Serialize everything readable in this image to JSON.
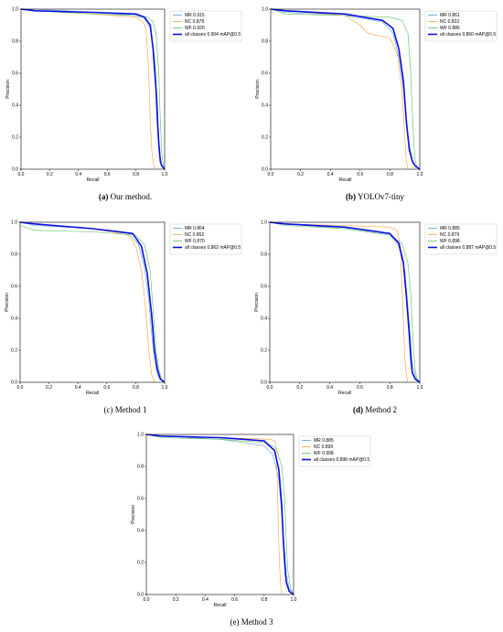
{
  "colors": {
    "MR": "#5a9fd4",
    "NC": "#ff9f3a",
    "WF": "#58bf58",
    "all": "#0a0ee0",
    "axis": "#000000"
  },
  "captions": [
    {
      "letter": "(a)",
      "text": "Our method."
    },
    {
      "letter": "(b)",
      "text": "YOLOv7-tiny"
    },
    {
      "letter": "(c)",
      "text": "Method 1"
    },
    {
      "letter": "(d)",
      "text": "Method 2"
    },
    {
      "letter": "(e)",
      "text": "Method 3"
    }
  ],
  "chart_data": [
    {
      "type": "line",
      "xlabel": "Recall",
      "ylabel": "Precision",
      "xlim": [
        0,
        1
      ],
      "ylim": [
        0,
        1
      ],
      "xticks": [
        "0.0",
        "0.2",
        "0.4",
        "0.6",
        "0.8",
        "1.0"
      ],
      "yticks": [
        "0.0",
        "0.2",
        "0.4",
        "0.6",
        "0.8",
        "1.0"
      ],
      "legend_position": "top-right",
      "grid": false,
      "series": [
        {
          "name": "MR 0.915",
          "key": "MR",
          "x": [
            0,
            0.1,
            0.5,
            0.8,
            0.86,
            0.9,
            0.93,
            0.95,
            0.96,
            0.97,
            0.98,
            1.0
          ],
          "y": [
            1.0,
            1.0,
            0.98,
            0.96,
            0.94,
            0.88,
            0.7,
            0.4,
            0.2,
            0.08,
            0.03,
            0.0
          ]
        },
        {
          "name": "NC 0.878",
          "key": "NC",
          "x": [
            0,
            0.1,
            0.5,
            0.8,
            0.85,
            0.87,
            0.89,
            0.9,
            0.91,
            0.92,
            0.93
          ],
          "y": [
            1.0,
            0.99,
            0.97,
            0.95,
            0.92,
            0.88,
            0.6,
            0.3,
            0.12,
            0.05,
            0.0
          ]
        },
        {
          "name": "WF 0.920",
          "key": "WF",
          "x": [
            0,
            0.1,
            0.5,
            0.8,
            0.88,
            0.92,
            0.94,
            0.96,
            0.97,
            0.98,
            0.99,
            1.0
          ],
          "y": [
            1.0,
            0.99,
            0.97,
            0.96,
            0.95,
            0.92,
            0.85,
            0.6,
            0.3,
            0.1,
            0.03,
            0.0
          ]
        },
        {
          "name": "all classes 0.904 mAP@0.5",
          "key": "all",
          "x": [
            0,
            0.1,
            0.5,
            0.8,
            0.86,
            0.9,
            0.92,
            0.94,
            0.95,
            0.96,
            0.97,
            0.98,
            1.0
          ],
          "y": [
            1.0,
            0.99,
            0.98,
            0.97,
            0.95,
            0.9,
            0.75,
            0.5,
            0.3,
            0.15,
            0.05,
            0.02,
            0.0
          ]
        }
      ]
    },
    {
      "type": "line",
      "xlabel": "Recall",
      "ylabel": "Precision",
      "xlim": [
        0,
        1
      ],
      "ylim": [
        0,
        1
      ],
      "xticks": [
        "0.0",
        "0.2",
        "0.4",
        "0.6",
        "0.8",
        "1.0"
      ],
      "yticks": [
        "0.0",
        "0.2",
        "0.4",
        "0.6",
        "0.8",
        "1.0"
      ],
      "legend_position": "top-right",
      "grid": false,
      "series": [
        {
          "name": "MR 0.861",
          "key": "MR",
          "x": [
            0,
            0.1,
            0.5,
            0.75,
            0.82,
            0.86,
            0.89,
            0.91,
            0.93,
            0.95,
            0.97,
            1.0
          ],
          "y": [
            1.0,
            0.98,
            0.96,
            0.92,
            0.85,
            0.7,
            0.5,
            0.3,
            0.15,
            0.06,
            0.02,
            0.0
          ]
        },
        {
          "name": "NC 0.832",
          "key": "NC",
          "x": [
            0,
            0.1,
            0.5,
            0.6,
            0.65,
            0.8,
            0.85,
            0.88,
            0.9,
            0.91,
            0.92
          ],
          "y": [
            1.0,
            0.99,
            0.96,
            0.9,
            0.85,
            0.82,
            0.72,
            0.5,
            0.2,
            0.05,
            0.0
          ]
        },
        {
          "name": "WF 0.886",
          "key": "WF",
          "x": [
            0,
            0.1,
            0.5,
            0.8,
            0.88,
            0.92,
            0.94,
            0.95,
            0.96,
            0.97,
            0.98,
            1.0
          ],
          "y": [
            1.0,
            0.97,
            0.96,
            0.95,
            0.93,
            0.85,
            0.6,
            0.35,
            0.15,
            0.05,
            0.02,
            0.0
          ]
        },
        {
          "name": "all classes 0.860 mAP@0.5",
          "key": "all",
          "x": [
            0,
            0.1,
            0.5,
            0.75,
            0.82,
            0.86,
            0.89,
            0.91,
            0.93,
            0.95,
            0.97,
            1.0
          ],
          "y": [
            1.0,
            0.99,
            0.97,
            0.93,
            0.88,
            0.75,
            0.55,
            0.3,
            0.12,
            0.05,
            0.02,
            0.0
          ]
        }
      ]
    },
    {
      "type": "line",
      "xlabel": "Recall",
      "ylabel": "Precision",
      "xlim": [
        0,
        1
      ],
      "ylim": [
        0,
        1
      ],
      "xticks": [
        "0.0",
        "0.2",
        "0.4",
        "0.6",
        "0.8",
        "1.0"
      ],
      "yticks": [
        "0.0",
        "0.2",
        "0.4",
        "0.6",
        "0.8",
        "1.0"
      ],
      "legend_position": "top-right",
      "grid": false,
      "series": [
        {
          "name": "MR 0.864",
          "key": "MR",
          "x": [
            0,
            0.1,
            0.5,
            0.75,
            0.82,
            0.86,
            0.89,
            0.91,
            0.93,
            0.95,
            0.97,
            1.0
          ],
          "y": [
            1.0,
            0.98,
            0.96,
            0.93,
            0.86,
            0.72,
            0.52,
            0.3,
            0.14,
            0.05,
            0.02,
            0.0
          ]
        },
        {
          "name": "NC 0.852",
          "key": "NC",
          "x": [
            0,
            0.1,
            0.5,
            0.75,
            0.8,
            0.84,
            0.87,
            0.89,
            0.91,
            0.93
          ],
          "y": [
            1.0,
            0.99,
            0.96,
            0.92,
            0.85,
            0.7,
            0.45,
            0.2,
            0.05,
            0.0
          ]
        },
        {
          "name": "WF 0.870",
          "key": "WF",
          "x": [
            0,
            0.1,
            0.5,
            0.8,
            0.86,
            0.9,
            0.92,
            0.94,
            0.96,
            0.98,
            1.0
          ],
          "y": [
            0.98,
            0.95,
            0.94,
            0.92,
            0.86,
            0.7,
            0.45,
            0.2,
            0.08,
            0.02,
            0.0
          ]
        },
        {
          "name": "all classes 0.862 mAP@0.5",
          "key": "all",
          "x": [
            0,
            0.1,
            0.5,
            0.78,
            0.84,
            0.88,
            0.91,
            0.93,
            0.95,
            0.97,
            1.0
          ],
          "y": [
            1.0,
            0.99,
            0.96,
            0.93,
            0.85,
            0.68,
            0.42,
            0.2,
            0.08,
            0.02,
            0.0
          ]
        }
      ]
    },
    {
      "type": "line",
      "xlabel": "Recall",
      "ylabel": "Precision",
      "xlim": [
        0,
        1
      ],
      "ylim": [
        0,
        1
      ],
      "xticks": [
        "0.0",
        "0.2",
        "0.4",
        "0.6",
        "0.8",
        "1.0"
      ],
      "yticks": [
        "0.0",
        "0.2",
        "0.4",
        "0.6",
        "0.8",
        "1.0"
      ],
      "legend_position": "top-right",
      "grid": false,
      "series": [
        {
          "name": "MR 0.885",
          "key": "MR",
          "x": [
            0,
            0.1,
            0.5,
            0.8,
            0.86,
            0.9,
            0.92,
            0.94,
            0.95,
            0.97,
            1.0
          ],
          "y": [
            1.0,
            0.99,
            0.96,
            0.92,
            0.85,
            0.7,
            0.48,
            0.25,
            0.12,
            0.04,
            0.0
          ]
        },
        {
          "name": "NC 0.879",
          "key": "NC",
          "x": [
            0,
            0.1,
            0.5,
            0.8,
            0.85,
            0.87,
            0.89,
            0.9,
            0.91,
            0.92
          ],
          "y": [
            1.0,
            0.99,
            0.98,
            0.97,
            0.95,
            0.85,
            0.4,
            0.15,
            0.05,
            0.0
          ]
        },
        {
          "name": "WF 0.898",
          "key": "WF",
          "x": [
            0,
            0.1,
            0.5,
            0.8,
            0.88,
            0.92,
            0.94,
            0.95,
            0.96,
            0.97,
            0.98,
            1.0
          ],
          "y": [
            1.0,
            0.98,
            0.96,
            0.92,
            0.87,
            0.75,
            0.55,
            0.35,
            0.18,
            0.08,
            0.02,
            0.0
          ]
        },
        {
          "name": "all classes 0.887 mAP@0.5",
          "key": "all",
          "x": [
            0,
            0.1,
            0.5,
            0.8,
            0.86,
            0.89,
            0.91,
            0.93,
            0.94,
            0.95,
            0.97,
            1.0
          ],
          "y": [
            1.0,
            0.99,
            0.97,
            0.93,
            0.87,
            0.75,
            0.55,
            0.3,
            0.15,
            0.06,
            0.02,
            0.0
          ]
        }
      ]
    },
    {
      "type": "line",
      "xlabel": "Recall",
      "ylabel": "Precision",
      "xlim": [
        0,
        1
      ],
      "ylim": [
        0,
        1
      ],
      "xticks": [
        "0.0",
        "0.2",
        "0.4",
        "0.6",
        "0.8",
        "1.0"
      ],
      "yticks": [
        "0.0",
        "0.2",
        "0.4",
        "0.6",
        "0.8",
        "1.0"
      ],
      "legend_position": "top-right",
      "grid": false,
      "series": [
        {
          "name": "MR 0.885",
          "key": "MR",
          "x": [
            0,
            0.1,
            0.5,
            0.8,
            0.86,
            0.9,
            0.92,
            0.94,
            0.95,
            0.97,
            1.0
          ],
          "y": [
            1.0,
            0.99,
            0.97,
            0.93,
            0.87,
            0.72,
            0.5,
            0.27,
            0.13,
            0.04,
            0.0
          ]
        },
        {
          "name": "NC 0.899",
          "key": "NC",
          "x": [
            0,
            0.1,
            0.5,
            0.85,
            0.88,
            0.89,
            0.9,
            0.91,
            0.92
          ],
          "y": [
            1.0,
            0.99,
            0.98,
            0.97,
            0.95,
            0.7,
            0.3,
            0.08,
            0.0
          ]
        },
        {
          "name": "WF 0.908",
          "key": "WF",
          "x": [
            0,
            0.1,
            0.5,
            0.8,
            0.88,
            0.92,
            0.94,
            0.95,
            0.96,
            0.98,
            1.0
          ],
          "y": [
            1.0,
            0.98,
            0.97,
            0.95,
            0.92,
            0.8,
            0.6,
            0.35,
            0.15,
            0.04,
            0.0
          ]
        },
        {
          "name": "all classes 0.898 mAP@0.5",
          "key": "all",
          "x": [
            0,
            0.1,
            0.5,
            0.8,
            0.87,
            0.9,
            0.92,
            0.93,
            0.94,
            0.95,
            0.97,
            1.0
          ],
          "y": [
            1.0,
            0.99,
            0.98,
            0.96,
            0.9,
            0.78,
            0.55,
            0.35,
            0.2,
            0.08,
            0.02,
            0.0
          ]
        }
      ]
    }
  ]
}
